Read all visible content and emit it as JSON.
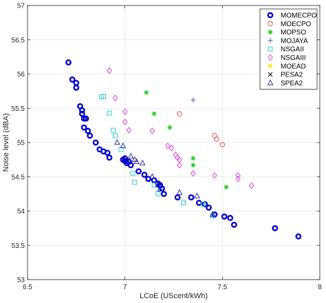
{
  "chart_data": {
    "type": "scatter",
    "xlabel": "LCoE (UScent/kWh)",
    "ylabel": "Noise level (dBA)",
    "xlim": [
      6.5,
      8
    ],
    "ylim": [
      53,
      57
    ],
    "xticks": [
      "6.5",
      "7",
      "7.5",
      "8"
    ],
    "yticks": [
      "53",
      "53.5",
      "54",
      "54.5",
      "55",
      "55.5",
      "56",
      "56.5",
      "57"
    ],
    "grid": true,
    "legend_position": "top-right",
    "series": [
      {
        "name": "MOMECPO",
        "marker": "thick-circle",
        "color": "#0000cc",
        "points": [
          [
            6.71,
            56.17
          ],
          [
            6.73,
            55.92
          ],
          [
            6.75,
            55.87
          ],
          [
            6.75,
            55.8
          ],
          [
            6.77,
            55.53
          ],
          [
            6.78,
            55.47
          ],
          [
            6.78,
            55.42
          ],
          [
            6.79,
            55.35
          ],
          [
            6.8,
            55.35
          ],
          [
            6.79,
            55.22
          ],
          [
            6.81,
            55.17
          ],
          [
            6.82,
            55.1
          ],
          [
            6.85,
            55.0
          ],
          [
            6.87,
            54.9
          ],
          [
            6.89,
            54.87
          ],
          [
            6.91,
            54.85
          ],
          [
            6.92,
            54.78
          ],
          [
            7.0,
            54.77
          ],
          [
            7.0,
            54.73
          ],
          [
            7.02,
            54.72
          ],
          [
            7.03,
            54.67
          ],
          [
            7.07,
            54.58
          ],
          [
            7.1,
            54.53
          ],
          [
            7.12,
            54.47
          ],
          [
            7.15,
            54.45
          ],
          [
            7.17,
            54.4
          ],
          [
            7.18,
            54.37
          ],
          [
            7.19,
            54.33
          ],
          [
            7.2,
            54.25
          ],
          [
            7.27,
            54.2
          ],
          [
            7.34,
            54.2
          ],
          [
            7.38,
            54.12
          ],
          [
            7.41,
            54.1
          ],
          [
            7.43,
            54.05
          ],
          [
            7.46,
            53.95
          ],
          [
            7.51,
            53.92
          ],
          [
            7.54,
            53.9
          ],
          [
            7.56,
            53.8
          ],
          [
            7.77,
            53.75
          ],
          [
            7.89,
            53.63
          ],
          [
            6.99,
            54.75
          ],
          [
            7.01,
            54.7
          ],
          [
            7.18,
            54.38
          ]
        ]
      },
      {
        "name": "MOECPO",
        "marker": "circle",
        "color": "#e05050",
        "points": [
          [
            7.28,
            55.42
          ],
          [
            7.46,
            55.1
          ],
          [
            7.47,
            55.05
          ],
          [
            7.5,
            54.97
          ]
        ]
      },
      {
        "name": "MOPSO",
        "marker": "star",
        "color": "#22cc22",
        "points": [
          [
            7.11,
            55.73
          ],
          [
            7.15,
            55.42
          ],
          [
            7.23,
            55.22
          ],
          [
            7.35,
            54.77
          ],
          [
            7.35,
            54.67
          ],
          [
            7.52,
            54.35
          ]
        ]
      },
      {
        "name": "MOJAYA",
        "marker": "plus",
        "color": "#5555aa",
        "points": [
          [
            7.35,
            55.62
          ]
        ]
      },
      {
        "name": "NSGAII",
        "marker": "square",
        "color": "#33cccc",
        "points": [
          [
            6.89,
            55.67
          ],
          [
            6.88,
            55.67
          ],
          [
            6.92,
            55.43
          ],
          [
            6.94,
            55.18
          ],
          [
            6.95,
            55.1
          ],
          [
            6.98,
            54.9
          ],
          [
            7.04,
            54.55
          ],
          [
            7.05,
            54.42
          ],
          [
            7.15,
            54.38
          ],
          [
            7.17,
            54.25
          ],
          [
            7.3,
            54.12
          ],
          [
            7.4,
            54.1
          ],
          [
            7.45,
            53.93
          ]
        ]
      },
      {
        "name": "NSGAIII",
        "marker": "diamond",
        "color": "#dd44dd",
        "points": [
          [
            6.92,
            56.05
          ],
          [
            6.95,
            55.65
          ],
          [
            7.0,
            55.45
          ],
          [
            7.0,
            55.3
          ],
          [
            7.02,
            55.18
          ],
          [
            7.14,
            55.17
          ],
          [
            7.22,
            54.95
          ],
          [
            7.24,
            54.92
          ],
          [
            7.26,
            54.82
          ],
          [
            7.27,
            54.78
          ],
          [
            7.28,
            54.75
          ],
          [
            7.28,
            54.67
          ],
          [
            7.35,
            54.55
          ],
          [
            7.46,
            54.52
          ],
          [
            7.58,
            54.52
          ],
          [
            7.58,
            54.47
          ],
          [
            7.65,
            54.37
          ]
        ]
      },
      {
        "name": "MOEAD",
        "marker": "star",
        "color": "#eeee22",
        "points": []
      },
      {
        "name": "PESA2",
        "marker": "cross",
        "color": "#000000",
        "points": []
      },
      {
        "name": "SPEA2",
        "marker": "triangle",
        "color": "#3333aa",
        "points": [
          [
            6.96,
            55.0
          ],
          [
            6.99,
            54.95
          ],
          [
            7.03,
            54.8
          ],
          [
            7.05,
            54.75
          ],
          [
            7.06,
            54.72
          ],
          [
            7.09,
            54.7
          ],
          [
            7.14,
            54.5
          ],
          [
            7.17,
            54.38
          ],
          [
            7.18,
            54.32
          ],
          [
            7.28,
            54.27
          ],
          [
            7.37,
            54.22
          ],
          [
            7.45,
            53.95
          ]
        ]
      }
    ]
  }
}
